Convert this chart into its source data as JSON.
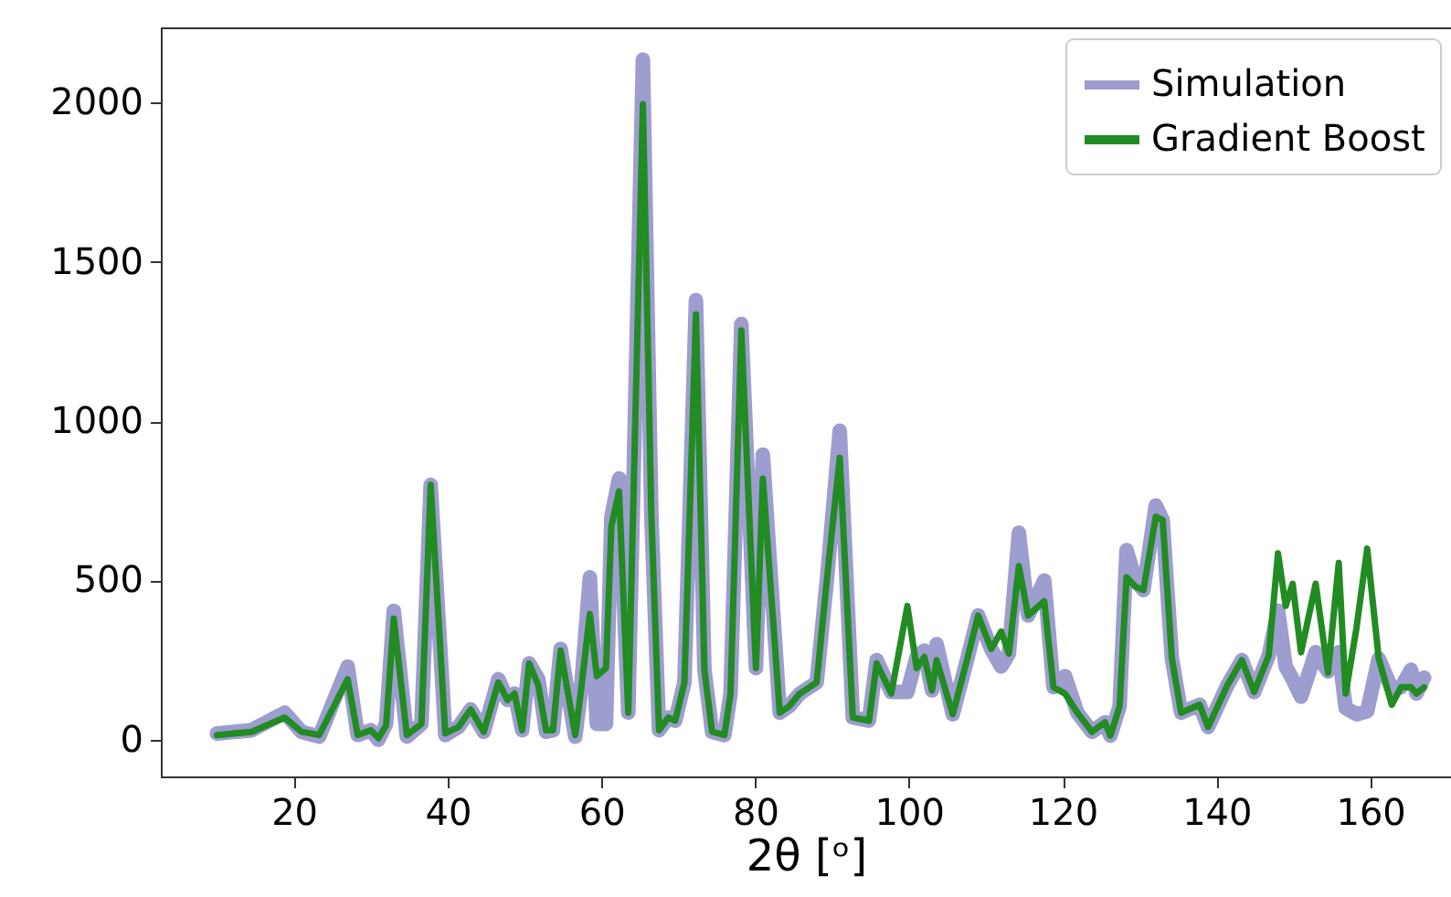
{
  "chart_data": {
    "type": "line",
    "xlabel": "2θ [ᵒ]",
    "x": [
      10,
      14.5,
      18.8,
      21,
      23.3,
      27,
      28.3,
      30,
      31,
      32,
      33,
      34.7,
      36.6,
      37.8,
      39.7,
      41.4,
      43,
      44.7,
      46.6,
      47.8,
      48.7,
      49.7,
      50.6,
      51.8,
      52.8,
      53.7,
      54.7,
      56.6,
      57.3,
      58.5,
      59.4,
      60.6,
      61.3,
      62.3,
      63.5,
      65.4,
      66.5,
      67.5,
      68.7,
      69.6,
      70.8,
      72.3,
      73.4,
      74.4,
      76,
      76.8,
      78.2,
      80.1,
      81,
      83.2,
      84.4,
      85.8,
      88,
      89.4,
      91,
      92.7,
      94.8,
      95.8,
      97.7,
      99.8,
      101,
      102,
      103,
      103.6,
      105.7,
      107.6,
      109,
      110.7,
      112,
      113,
      114.3,
      115.5,
      117.6,
      118.8,
      120.3,
      121.9,
      123.8,
      125.5,
      126.2,
      127.4,
      128.3,
      129.5,
      130.5,
      132.1,
      133,
      134.2,
      135.4,
      137.8,
      138.9,
      141.4,
      143.3,
      144.9,
      146.8,
      148,
      149,
      149.9,
      151,
      152.9,
      154.5,
      155.9,
      156.8,
      158.2,
      159.6,
      161.1,
      162.8,
      164,
      165.3,
      166,
      167
    ],
    "series": [
      {
        "name": "Simulation",
        "color": "#9d9dcf",
        "values": [
          20,
          30,
          85,
          25,
          10,
          230,
          15,
          30,
          0,
          50,
          405,
          10,
          50,
          800,
          15,
          40,
          95,
          25,
          190,
          125,
          145,
          30,
          240,
          190,
          25,
          30,
          285,
          10,
          145,
          510,
          50,
          50,
          700,
          820,
          85,
          2135,
          705,
          30,
          70,
          60,
          180,
          1380,
          220,
          25,
          15,
          145,
          1305,
          225,
          895,
          85,
          105,
          145,
          180,
          520,
          970,
          70,
          60,
          250,
          150,
          150,
          260,
          280,
          155,
          300,
          80,
          255,
          390,
          285,
          230,
          270,
          650,
          390,
          500,
          165,
          200,
          85,
          25,
          55,
          13,
          105,
          595,
          500,
          470,
          735,
          690,
          255,
          85,
          110,
          40,
          170,
          250,
          150,
          265,
          405,
          230,
          190,
          135,
          275,
          215,
          275,
          100,
          80,
          90,
          255,
          160,
          165,
          220,
          145,
          195
        ]
      },
      {
        "name": "Gradient Boost",
        "color": "#228b22",
        "values": [
          15,
          25,
          70,
          25,
          15,
          190,
          15,
          30,
          5,
          45,
          380,
          15,
          50,
          800,
          20,
          40,
          95,
          25,
          180,
          125,
          145,
          30,
          240,
          170,
          30,
          30,
          280,
          15,
          145,
          395,
          200,
          225,
          670,
          780,
          85,
          1995,
          705,
          30,
          70,
          60,
          180,
          1335,
          220,
          25,
          15,
          145,
          1285,
          225,
          820,
          85,
          105,
          145,
          180,
          520,
          885,
          70,
          60,
          240,
          145,
          420,
          225,
          260,
          155,
          250,
          80,
          255,
          390,
          285,
          340,
          270,
          545,
          390,
          435,
          165,
          145,
          85,
          25,
          55,
          13,
          105,
          510,
          480,
          470,
          700,
          690,
          255,
          85,
          110,
          40,
          170,
          250,
          150,
          265,
          585,
          420,
          490,
          275,
          490,
          210,
          555,
          145,
          350,
          600,
          255,
          110,
          165,
          165,
          145,
          165
        ]
      }
    ],
    "xlim": [
      2.7,
      170.5
    ],
    "xticks": [
      20,
      40,
      60,
      80,
      100,
      120,
      140,
      160
    ],
    "ylim": [
      -115,
      2236
    ],
    "yticks": [
      0,
      500,
      1000,
      1500,
      2000
    ],
    "legend": "top right"
  }
}
